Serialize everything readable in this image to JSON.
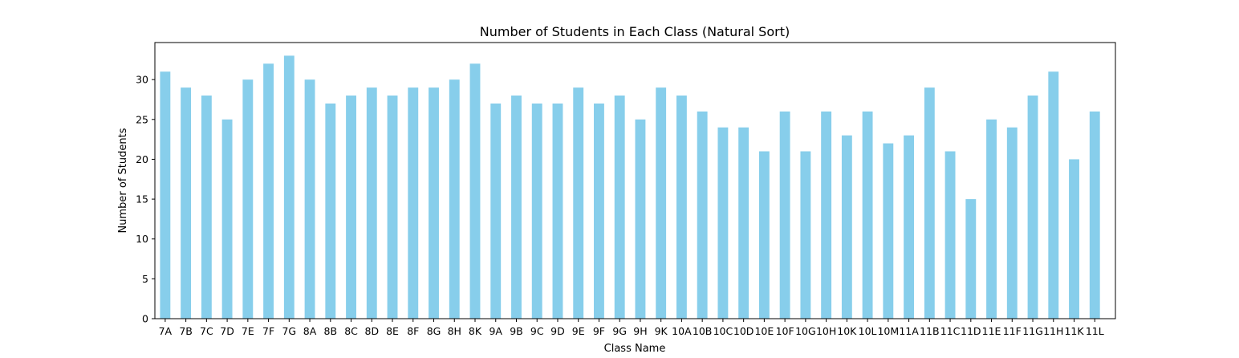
{
  "chart_data": {
    "type": "bar",
    "title": "Number of Students in Each Class (Natural Sort)",
    "xlabel": "Class Name",
    "ylabel": "Number of Students",
    "categories": [
      "7A",
      "7B",
      "7C",
      "7D",
      "7E",
      "7F",
      "7G",
      "8A",
      "8B",
      "8C",
      "8D",
      "8E",
      "8F",
      "8G",
      "8H",
      "8K",
      "9A",
      "9B",
      "9C",
      "9D",
      "9E",
      "9F",
      "9G",
      "9H",
      "9K",
      "10A",
      "10B",
      "10C",
      "10D",
      "10E",
      "10F",
      "10G",
      "10H",
      "10K",
      "10L",
      "10M",
      "11A",
      "11B",
      "11C",
      "11D",
      "11E",
      "11F",
      "11G",
      "11H",
      "11K",
      "11L"
    ],
    "values": [
      31,
      29,
      28,
      25,
      30,
      32,
      33,
      30,
      27,
      28,
      29,
      28,
      29,
      29,
      30,
      32,
      27,
      28,
      27,
      27,
      29,
      27,
      28,
      25,
      29,
      28,
      26,
      24,
      24,
      21,
      26,
      21,
      26,
      23,
      26,
      22,
      23,
      29,
      21,
      15,
      25,
      24,
      28,
      31,
      20,
      26
    ],
    "yticks": [
      0,
      5,
      10,
      15,
      20,
      25,
      30
    ],
    "ylim": [
      0,
      34.65
    ],
    "grid": false,
    "legend": "none",
    "bar_color": "#87CEEB"
  }
}
